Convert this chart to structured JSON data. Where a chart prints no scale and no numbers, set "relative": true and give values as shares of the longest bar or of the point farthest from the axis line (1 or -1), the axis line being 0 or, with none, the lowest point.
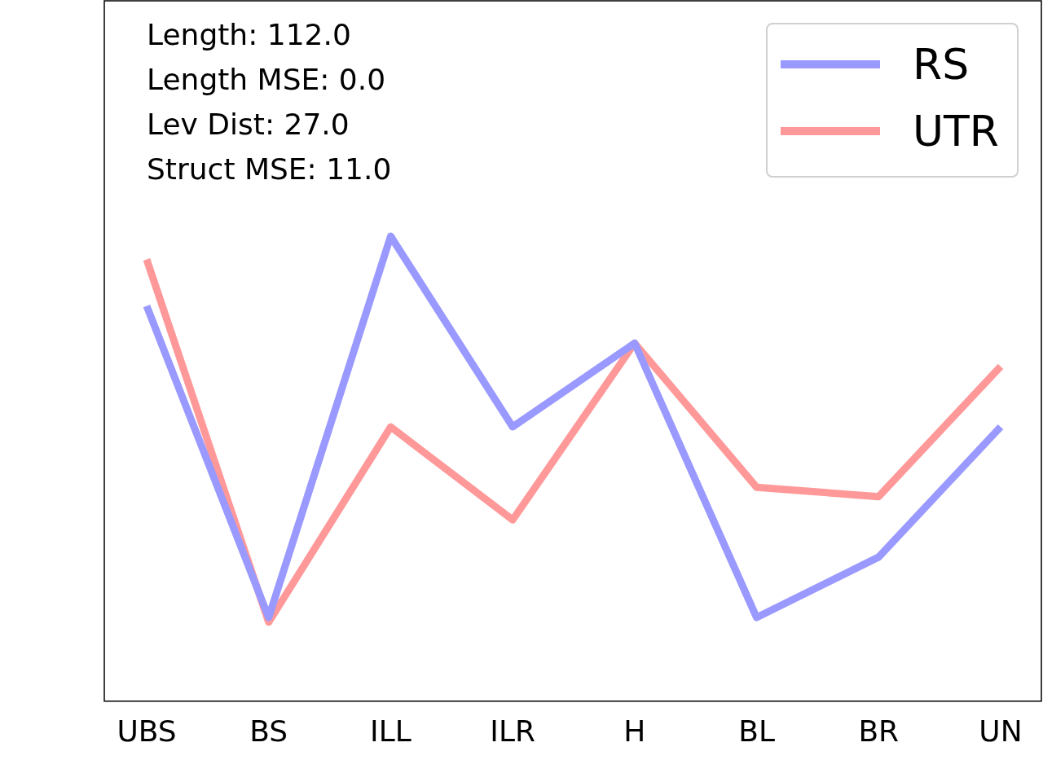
{
  "chart_data": {
    "type": "line",
    "relative": true,
    "categories": [
      "UBS",
      "BS",
      "ILL",
      "ILR",
      "H",
      "BL",
      "BR",
      "UN"
    ],
    "series": [
      {
        "name": "RS",
        "color": "#9999ff",
        "values": [
          0.85,
          0.18,
          1,
          0.59,
          0.77,
          0.18,
          0.31,
          0.59
        ]
      },
      {
        "name": "UTR",
        "color": "#ff9999",
        "values": [
          0.95,
          0.17,
          0.59,
          0.39,
          0.77,
          0.46,
          0.44,
          0.72
        ]
      }
    ],
    "annotations": [
      "Length: 112.0",
      "Length MSE: 0.0",
      "Lev Dist: 27.0",
      "Struct MSE: 11.0"
    ],
    "legend": "top right",
    "grid": false,
    "marker": "none",
    "line_style": "solid"
  }
}
